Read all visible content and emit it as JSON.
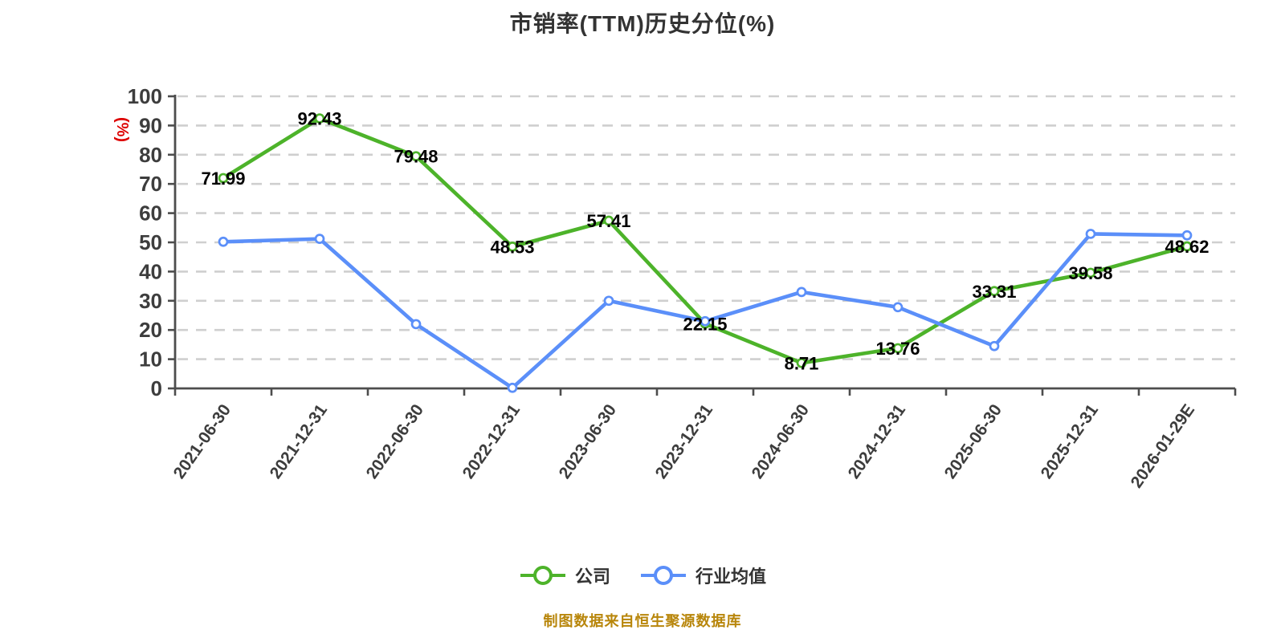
{
  "title": "市销率(TTM)历史分位(%)",
  "y_axis_name": "(%)",
  "footer": "制图数据来自恒生聚源数据库",
  "colors": {
    "company_line": "#4db32a",
    "industry_line": "#5b8ff9",
    "grid": "#cfcfcf",
    "axis": "#4d4d4d",
    "tick_label": "#3d3d3d",
    "value_label": "#000000",
    "marker_fill": "#ffffff",
    "title": "#333333",
    "y_axis_name": "#dd0000",
    "footer": "#b8860b",
    "legend_label": "#333333"
  },
  "chart_data": {
    "type": "line",
    "title": "市销率(TTM)历史分位(%)",
    "xlabel": "",
    "ylabel": "(%)",
    "ylim": [
      0,
      100
    ],
    "ytick_step": 10,
    "grid": "horizontal-dashed",
    "legend_position": "bottom",
    "categories": [
      "2021-06-30",
      "2021-12-31",
      "2022-06-30",
      "2022-12-31",
      "2023-06-30",
      "2023-12-31",
      "2024-06-30",
      "2024-12-31",
      "2025-06-30",
      "2025-12-31",
      "2026-01-29E"
    ],
    "series": [
      {
        "name": "公司",
        "color": "#4db32a",
        "show_labels": true,
        "values": [
          71.99,
          92.43,
          79.48,
          48.53,
          57.41,
          22.15,
          8.71,
          13.76,
          33.31,
          39.58,
          48.62
        ]
      },
      {
        "name": "行业均值",
        "color": "#5b8ff9",
        "show_labels": false,
        "values": [
          50.2,
          51.2,
          22.0,
          0.2,
          30.0,
          23.0,
          33.0,
          27.8,
          14.5,
          52.9,
          52.4
        ]
      }
    ]
  }
}
